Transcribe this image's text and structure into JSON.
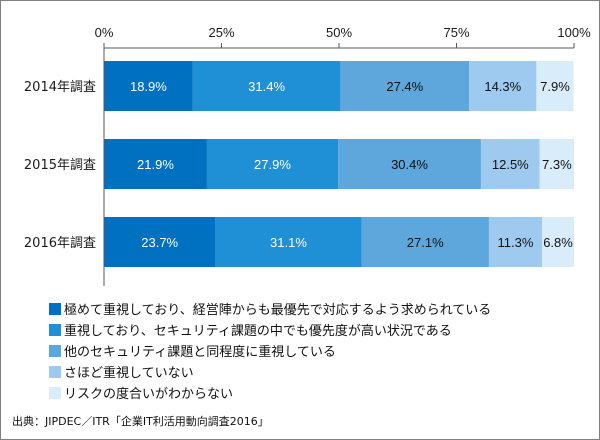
{
  "chart_data": {
    "type": "bar",
    "orientation": "horizontal",
    "stacked": true,
    "xlim": [
      0,
      100
    ],
    "xticks": [
      "0%",
      "25%",
      "50%",
      "75%",
      "100%"
    ],
    "categories": [
      "2014年調査",
      "2015年調査",
      "2016年調査"
    ],
    "series": [
      {
        "name": "極めて重視しており、経営陣からも最優先で対応するよう求められている",
        "color": "#0070C0",
        "label_color": "#ffffff",
        "values": [
          18.9,
          21.9,
          23.7
        ],
        "labels": [
          "18.9%",
          "21.9%",
          "23.7%"
        ]
      },
      {
        "name": "重視しており、セキュリティ課題の中でも優先度が高い状況である",
        "color": "#1F8FD6",
        "label_color": "#ffffff",
        "values": [
          31.4,
          27.9,
          31.1
        ],
        "labels": [
          "31.4%",
          "27.9%",
          "31.1%"
        ]
      },
      {
        "name": "他のセキュリティ課題と同程度に重視している",
        "color": "#5DA7DC",
        "label_color": "#111111",
        "values": [
          27.4,
          30.4,
          27.1
        ],
        "labels": [
          "27.4%",
          "30.4%",
          "27.1%"
        ]
      },
      {
        "name": "さほど重視していない",
        "color": "#9DCAEE",
        "label_color": "#111111",
        "values": [
          14.3,
          12.5,
          11.3
        ],
        "labels": [
          "14.3%",
          "12.5%",
          "11.3%"
        ]
      },
      {
        "name": "リスクの度合いがわからない",
        "color": "#D9ECFA",
        "label_color": "#111111",
        "values": [
          7.9,
          7.3,
          6.8
        ],
        "labels": [
          "7.9%",
          "7.3%",
          "6.8%"
        ]
      }
    ],
    "legend_position": "bottom",
    "grid": false
  },
  "source": "出典：JIPDEC／ITR「企業IT利活用動向調査2016」"
}
